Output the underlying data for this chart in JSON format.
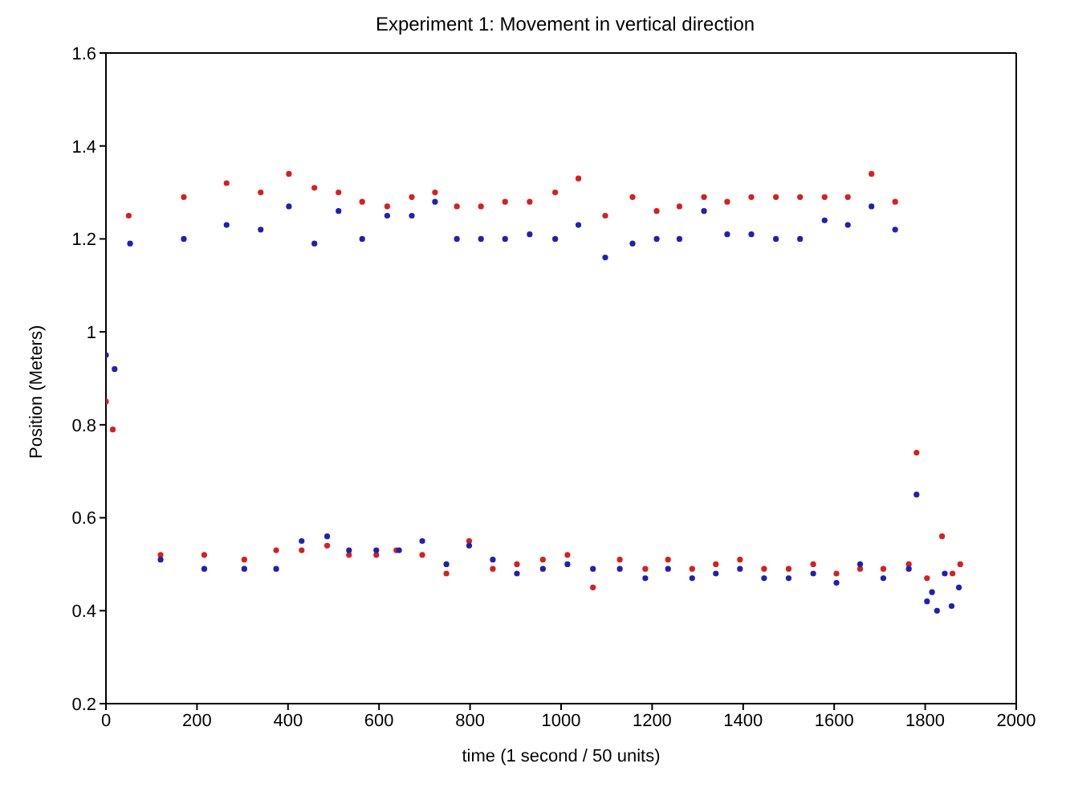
{
  "chart_data": {
    "type": "scatter",
    "title": "Experiment 1: Movement in vertical direction",
    "xlabel": "time (1 second / 50 units)",
    "ylabel": "Position (Meters)",
    "xlim": [
      0,
      2000
    ],
    "xticks": [
      0,
      200,
      400,
      600,
      800,
      1000,
      1200,
      1400,
      1600,
      1800,
      2000
    ],
    "ylim": [
      0.2,
      1.6
    ],
    "yticks": [
      0.2,
      0.4,
      0.6,
      0.8,
      1,
      1.2,
      1.4,
      1.6
    ],
    "marker": "circle",
    "series": [
      {
        "color": "#d62020",
        "x": [
          0,
          15,
          50,
          120,
          171,
          216,
          265,
          304,
          340,
          374,
          402,
          430,
          458,
          486,
          511,
          534,
          563,
          594,
          618,
          638,
          672,
          695,
          723,
          748,
          771,
          798,
          824,
          850,
          877,
          903,
          931,
          960,
          987,
          1014,
          1038,
          1070,
          1097,
          1129,
          1157,
          1185,
          1210,
          1235,
          1260,
          1288,
          1314,
          1340,
          1365,
          1393,
          1418,
          1446,
          1472,
          1500,
          1525,
          1554,
          1579,
          1605,
          1630,
          1657,
          1682,
          1708,
          1734,
          1764,
          1781,
          1804,
          1837,
          1860,
          1877
        ],
        "values": [
          0.85,
          0.79,
          1.25,
          0.52,
          1.29,
          0.52,
          1.32,
          0.51,
          1.3,
          0.53,
          1.34,
          0.53,
          1.31,
          0.54,
          1.3,
          0.52,
          1.28,
          0.52,
          1.27,
          0.53,
          1.29,
          0.52,
          1.3,
          0.48,
          1.27,
          0.55,
          1.27,
          0.49,
          1.28,
          0.5,
          1.28,
          0.51,
          1.3,
          0.52,
          1.33,
          0.45,
          1.25,
          0.51,
          1.29,
          0.49,
          1.26,
          0.51,
          1.27,
          0.49,
          1.29,
          0.5,
          1.28,
          0.51,
          1.29,
          0.49,
          1.29,
          0.49,
          1.29,
          0.5,
          1.29,
          0.48,
          1.29,
          0.49,
          1.34,
          0.49,
          1.28,
          0.5,
          0.74,
          0.47,
          0.56,
          0.48,
          0.5
        ]
      },
      {
        "color": "#2020b0",
        "x": [
          0,
          19,
          53,
          120,
          171,
          216,
          265,
          304,
          340,
          374,
          402,
          430,
          458,
          486,
          511,
          534,
          563,
          594,
          618,
          644,
          672,
          695,
          723,
          748,
          771,
          798,
          824,
          850,
          877,
          903,
          931,
          960,
          987,
          1014,
          1038,
          1070,
          1097,
          1129,
          1157,
          1185,
          1210,
          1235,
          1260,
          1288,
          1314,
          1340,
          1365,
          1393,
          1418,
          1446,
          1472,
          1500,
          1525,
          1554,
          1579,
          1605,
          1630,
          1657,
          1682,
          1708,
          1734,
          1764,
          1781,
          1804,
          1815,
          1826,
          1843,
          1858,
          1874
        ],
        "values": [
          0.95,
          0.92,
          1.19,
          0.51,
          1.2,
          0.49,
          1.23,
          0.49,
          1.22,
          0.49,
          1.27,
          0.55,
          1.19,
          0.56,
          1.26,
          0.53,
          1.2,
          0.53,
          1.25,
          0.53,
          1.25,
          0.55,
          1.28,
          0.5,
          1.2,
          0.54,
          1.2,
          0.51,
          1.2,
          0.48,
          1.21,
          0.49,
          1.2,
          0.5,
          1.23,
          0.49,
          1.16,
          0.49,
          1.19,
          0.47,
          1.2,
          0.49,
          1.2,
          0.47,
          1.26,
          0.48,
          1.21,
          0.49,
          1.21,
          0.47,
          1.2,
          0.47,
          1.2,
          0.48,
          1.24,
          0.46,
          1.23,
          0.5,
          1.27,
          0.47,
          1.22,
          0.49,
          0.65,
          0.42,
          0.44,
          0.4,
          0.48,
          0.41,
          0.45
        ]
      }
    ]
  }
}
